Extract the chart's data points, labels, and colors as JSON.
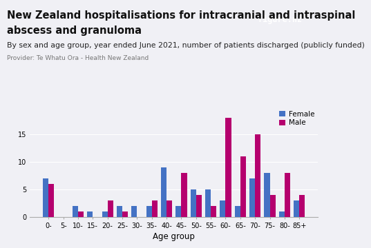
{
  "title_line1": "New Zealand hospitalisations for intracranial and intraspinal",
  "title_line2": "abscess and granuloma",
  "subtitle": "By sex and age group, year ended June 2021, number of patients discharged (publicly funded)",
  "provider": "Provider: Te Whatu Ora - Health New Zealand",
  "xlabel": "Age group",
  "age_groups": [
    "0-",
    "5-",
    "10-",
    "15-",
    "20-",
    "25-",
    "30-",
    "35-",
    "40-",
    "45-",
    "50-",
    "55-",
    "60-",
    "65-",
    "70-",
    "75-",
    "80-",
    "85+"
  ],
  "female": [
    7,
    0,
    2,
    1,
    1,
    2,
    2,
    2,
    9,
    2,
    5,
    5,
    3,
    2,
    7,
    8,
    1,
    3
  ],
  "male": [
    6,
    0,
    1,
    0,
    3,
    1,
    0,
    3,
    3,
    8,
    4,
    2,
    18,
    11,
    15,
    4,
    8,
    4
  ],
  "female_color": "#4472c4",
  "male_color": "#b5006e",
  "ylim": [
    0,
    20
  ],
  "yticks": [
    0,
    5,
    10,
    15
  ],
  "background_color": "#f0f0f5",
  "title_fontsize": 10.5,
  "subtitle_fontsize": 7.8,
  "provider_fontsize": 6.5,
  "axis_label_fontsize": 8.5,
  "tick_fontsize": 7.0,
  "legend_fontsize": 7.5,
  "bar_width": 0.38,
  "logo_bg": "#1a9bbf",
  "logo_text": "figure.nz"
}
